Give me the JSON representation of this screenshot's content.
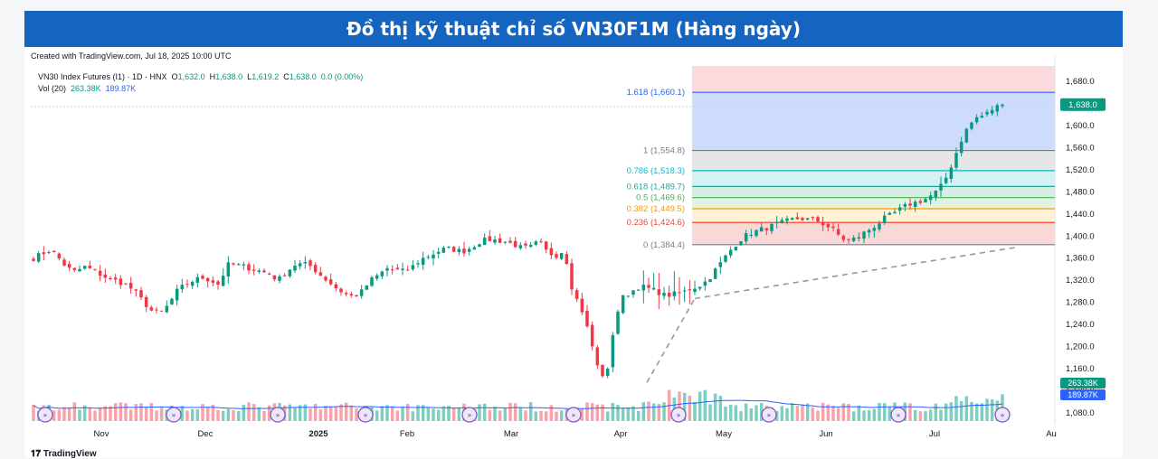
{
  "banner": {
    "title": "Đồ thị kỹ thuật chỉ số VN30F1M (Hàng ngày)"
  },
  "credit": "Created with TradingView.com, Jul 18, 2025 10:00 UTC",
  "legend": {
    "symbol": "VN30 Index Futures (I1) · 1D · HNX",
    "open_label": "O",
    "open": "1,632.0",
    "high_label": "H",
    "high": "1,638.0",
    "low_label": "L",
    "low": "1,619.2",
    "close_label": "C",
    "close": "1,638.0",
    "change": "0.0 (0.00%)",
    "vol_label": "Vol (20)",
    "vol_value": "263.38K",
    "vol_ma": "189.87K"
  },
  "logo": "TradingView",
  "colors": {
    "up": "#089981",
    "down": "#f23645",
    "banner": "#1565c0",
    "vol_ma": "#2962ff"
  },
  "chart_data": {
    "type": "candlestick",
    "symbol": "VN30F1M",
    "timeframe": "1D",
    "y_axis": {
      "range": [
        1060,
        1700
      ],
      "ticks": [
        1080,
        1120,
        1160,
        1200,
        1240,
        1280,
        1320,
        1360,
        1400,
        1440,
        1480,
        1520,
        1560,
        1600,
        1640,
        1680
      ],
      "tick_labels": [
        "1,080.0",
        "1,120.0",
        "1,160.0",
        "1,200.0",
        "1,240.0",
        "1,280.0",
        "1,320.0",
        "1,360.0",
        "1,400.0",
        "1,440.0",
        "1,480.0",
        "1,520.0",
        "1,560.0",
        "1,600.0",
        "1,640.0",
        "1,680.0"
      ]
    },
    "x_axis": {
      "labels": [
        "Nov",
        "Dec",
        "2025",
        "Feb",
        "Mar",
        "Apr",
        "May",
        "Jun",
        "Jul",
        "Au"
      ]
    },
    "last_price_label": "1,638.0",
    "volume_labels": [
      "263.38K",
      "189.87K"
    ],
    "fibonacci": [
      {
        "label": "1.618 (1,660.1)",
        "value": 1660.1,
        "color": "#2962ff"
      },
      {
        "label": "1 (1,554.8)",
        "value": 1554.8,
        "color": "#787b86"
      },
      {
        "label": "0.786 (1,518.3)",
        "value": 1518.3,
        "color": "#00bcd4"
      },
      {
        "label": "0.618 (1,489.7)",
        "value": 1489.7,
        "color": "#26a69a"
      },
      {
        "label": "0.5 (1,469.6)",
        "value": 1469.6,
        "color": "#4caf50"
      },
      {
        "label": "0.382 (1,449.5)",
        "value": 1449.5,
        "color": "#ff9800"
      },
      {
        "label": "0.236 (1,424.6)",
        "value": 1424.6,
        "color": "#f44336"
      },
      {
        "label": "0 (1,384.4)",
        "value": 1384.4,
        "color": "#787b86"
      }
    ],
    "price_anchors": [
      1360,
      1368,
      1375,
      1360,
      1342,
      1335,
      1345,
      1338,
      1330,
      1322,
      1318,
      1312,
      1300,
      1282,
      1265,
      1260,
      1275,
      1300,
      1312,
      1320,
      1325,
      1320,
      1312,
      1348,
      1348,
      1345,
      1340,
      1336,
      1332,
      1320,
      1335,
      1348,
      1350,
      1345,
      1330,
      1318,
      1305,
      1295,
      1290,
      1300,
      1320,
      1330,
      1342,
      1338,
      1336,
      1345,
      1358,
      1365,
      1372,
      1378,
      1375,
      1372,
      1380,
      1390,
      1394,
      1392,
      1390,
      1385,
      1378,
      1380,
      1390,
      1370,
      1365,
      1375,
      1300,
      1270,
      1220,
      1160,
      1140,
      1250,
      1290,
      1300,
      1310,
      1305,
      1300,
      1292,
      1295,
      1298,
      1305,
      1310,
      1320,
      1340,
      1360,
      1380,
      1395,
      1405,
      1410,
      1415,
      1420,
      1425,
      1430,
      1432,
      1430,
      1428,
      1420,
      1410,
      1395,
      1392,
      1400,
      1410,
      1420,
      1432,
      1440,
      1450,
      1458,
      1462,
      1468,
      1478,
      1495,
      1530,
      1570,
      1600,
      1615,
      1620,
      1632,
      1638
    ]
  }
}
